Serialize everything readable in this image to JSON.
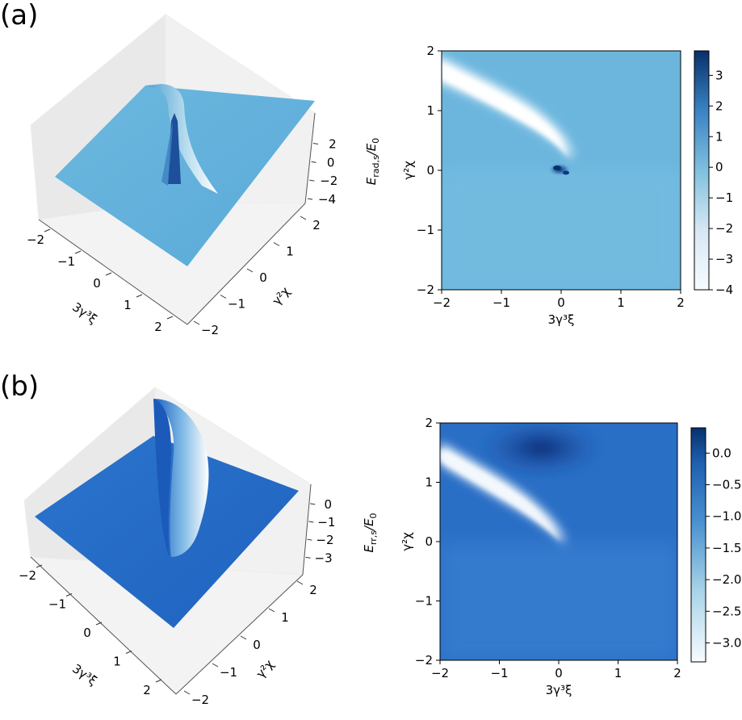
{
  "figure": {
    "panels": [
      {
        "label": "(a)"
      },
      {
        "label": "(b)"
      }
    ]
  },
  "chart_data": [
    {
      "type": "surface3d",
      "panel": "(a)",
      "x": {
        "label": "3γ³ξ",
        "ticks": [
          -2,
          -1,
          0,
          1,
          2
        ],
        "range": [
          -2,
          2
        ]
      },
      "y": {
        "label": "γ²χ",
        "ticks": [
          -2,
          -1,
          0,
          1,
          2
        ],
        "range": [
          -2,
          2
        ]
      },
      "z": {
        "label": "E_rad,s/E₀",
        "label_main": "E",
        "label_sub": "rad,s",
        "label_rest": "/E",
        "label_sub2": "0",
        "ticks": [
          -4,
          -2,
          0,
          2
        ],
        "range": [
          -4,
          3.8
        ]
      },
      "colormap": "Blues",
      "series_desc": "surface with sharp spike near origin and ridge along curve χ≈(−ξ)^(1/3)"
    },
    {
      "type": "heatmap",
      "panel": "(a)",
      "xlabel": "3γ³ξ",
      "ylabel": "γ²χ",
      "xlim": [
        -2,
        2
      ],
      "ylim": [
        -2,
        2
      ],
      "xticks": [
        -2,
        -1,
        0,
        1,
        2
      ],
      "yticks": [
        -2,
        -1,
        0,
        1,
        2
      ],
      "colorbar": {
        "ticks": [
          3,
          2,
          1,
          0,
          -1,
          -2,
          -3,
          -4
        ],
        "range": [
          -4,
          3.8
        ]
      },
      "colormap": "Blues"
    },
    {
      "type": "surface3d",
      "panel": "(b)",
      "x": {
        "label": "3γ³ξ",
        "ticks": [
          -2,
          -1,
          0,
          1,
          2
        ],
        "range": [
          -2,
          2
        ]
      },
      "y": {
        "label": "γ²χ",
        "ticks": [
          -2,
          -1,
          0,
          1,
          2
        ],
        "range": [
          -2,
          2
        ]
      },
      "z": {
        "label": "E_rr,s/E₀",
        "label_main": "E",
        "label_sub": "rr,s",
        "label_rest": "/E",
        "label_sub2": "0",
        "ticks": [
          -3,
          -2,
          -1,
          0
        ],
        "range": [
          -3.3,
          0.4
        ]
      },
      "colormap": "Blues",
      "series_desc": "surface with deep trough along curve χ≈(−ξ)^(1/3)"
    },
    {
      "type": "heatmap",
      "panel": "(b)",
      "xlabel": "3γ³ξ",
      "ylabel": "γ²χ",
      "xlim": [
        -2,
        2
      ],
      "ylim": [
        -2,
        2
      ],
      "xticks": [
        -2,
        -1,
        0,
        1,
        2
      ],
      "yticks": [
        -2,
        -1,
        0,
        1,
        2
      ],
      "colorbar": {
        "ticks": [
          0.0,
          -0.5,
          -1.0,
          -1.5,
          -2.0,
          -2.5,
          -3.0
        ],
        "tick_labels": [
          "0.0",
          "−0.5",
          "−1.0",
          "−1.5",
          "−2.0",
          "−2.5",
          "−3.0"
        ],
        "range": [
          -3.3,
          0.4
        ]
      },
      "colormap": "Blues"
    }
  ]
}
